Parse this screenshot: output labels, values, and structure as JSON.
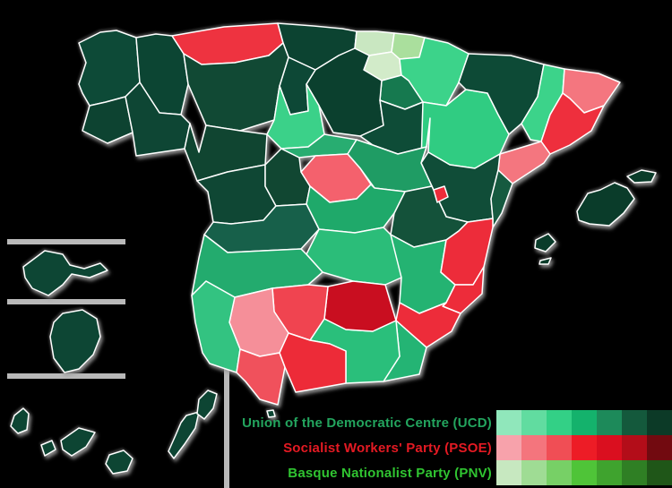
{
  "map": {
    "background": "#000000",
    "border_color": "#ffffff",
    "inset_rule_color": "#b9b9b9",
    "provinces": [
      {
        "id": "coruna",
        "name": "A Coruña",
        "party": "UCD",
        "fill": "#0d4a37"
      },
      {
        "id": "lugo",
        "name": "Lugo",
        "party": "UCD",
        "fill": "#0c4533"
      },
      {
        "id": "pontevedra",
        "name": "Pontevedra",
        "party": "UCD",
        "fill": "#0d4331"
      },
      {
        "id": "ourense",
        "name": "Ourense",
        "party": "UCD",
        "fill": "#0e4634"
      },
      {
        "id": "asturias",
        "name": "Asturias",
        "party": "PSOE",
        "fill": "#ee3340"
      },
      {
        "id": "cantabria",
        "name": "Cantabria",
        "party": "UCD",
        "fill": "#0c4331"
      },
      {
        "id": "vizcaya",
        "name": "Biscay",
        "party": "PNV",
        "fill": "#c9e7c1"
      },
      {
        "id": "guipuzcoa",
        "name": "Gipuzkoa",
        "party": "PNV",
        "fill": "#aadf9d"
      },
      {
        "id": "alava",
        "name": "Álava",
        "party": "PNV",
        "fill": "#d2ebc9"
      },
      {
        "id": "navarra",
        "name": "Navarre",
        "party": "UCD",
        "fill": "#3cd38a"
      },
      {
        "id": "rioja",
        "name": "La Rioja",
        "party": "UCD",
        "fill": "#16794f"
      },
      {
        "id": "burgos",
        "name": "Burgos",
        "party": "UCD",
        "fill": "#0b402e"
      },
      {
        "id": "palencia",
        "name": "Palencia",
        "party": "UCD",
        "fill": "#0d4836"
      },
      {
        "id": "leon",
        "name": "León",
        "party": "UCD",
        "fill": "#114934"
      },
      {
        "id": "zamora",
        "name": "Zamora",
        "party": "UCD",
        "fill": "#104531"
      },
      {
        "id": "valladolid",
        "name": "Valladolid",
        "party": "UCD",
        "fill": "#3bd189"
      },
      {
        "id": "salamanca",
        "name": "Salamanca",
        "party": "UCD",
        "fill": "#0f4734"
      },
      {
        "id": "avila",
        "name": "Ávila",
        "party": "UCD",
        "fill": "#114732"
      },
      {
        "id": "segovia",
        "name": "Segovia",
        "party": "UCD",
        "fill": "#28ad71"
      },
      {
        "id": "soria",
        "name": "Soria",
        "party": "UCD",
        "fill": "#0e4c37"
      },
      {
        "id": "zaragoza",
        "name": "Zaragoza",
        "party": "UCD",
        "fill": "#30cc82"
      },
      {
        "id": "huesca",
        "name": "Huesca",
        "party": "UCD",
        "fill": "#0d4a36"
      },
      {
        "id": "lleida",
        "name": "Lleida",
        "party": "UCD",
        "fill": "#3cd38a"
      },
      {
        "id": "girona",
        "name": "Girona",
        "party": "PSOE",
        "fill": "#f4767f"
      },
      {
        "id": "barcelona",
        "name": "Barcelona",
        "party": "PSOE",
        "fill": "#ee2f3d"
      },
      {
        "id": "tarragona",
        "name": "Tarragona",
        "party": "PSOE",
        "fill": "#f4767f"
      },
      {
        "id": "teruel",
        "name": "Teruel",
        "party": "UCD",
        "fill": "#104d38"
      },
      {
        "id": "castellon",
        "name": "Castellón",
        "party": "UCD",
        "fill": "#165a40"
      },
      {
        "id": "guadalajara",
        "name": "Guadalajara",
        "party": "UCD",
        "fill": "#1f9c64"
      },
      {
        "id": "madrid",
        "name": "Madrid",
        "party": "PSOE",
        "fill": "#f4616d"
      },
      {
        "id": "cuenca",
        "name": "Cuenca",
        "party": "UCD",
        "fill": "#14523a"
      },
      {
        "id": "toledo",
        "name": "Toledo",
        "party": "UCD",
        "fill": "#1fa96a"
      },
      {
        "id": "ciudadreal",
        "name": "Ciudad Real",
        "party": "UCD",
        "fill": "#2bbd79"
      },
      {
        "id": "caceres",
        "name": "Cáceres",
        "party": "UCD",
        "fill": "#17604a"
      },
      {
        "id": "badajoz",
        "name": "Badajoz",
        "party": "UCD",
        "fill": "#23ab6e"
      },
      {
        "id": "albacete",
        "name": "Albacete",
        "party": "UCD",
        "fill": "#24b372"
      },
      {
        "id": "valencia",
        "name": "Valencia",
        "party": "PSOE",
        "fill": "#ed2c3a"
      },
      {
        "id": "ademuz",
        "name": "Valencia (Rincón de Ademuz)",
        "party": "PSOE",
        "fill": "#ed2c3a"
      },
      {
        "id": "alicante",
        "name": "Alicante",
        "party": "PSOE",
        "fill": "#ed2c3a"
      },
      {
        "id": "murcia",
        "name": "Murcia",
        "party": "PSOE",
        "fill": "#ed2c3a"
      },
      {
        "id": "almeria",
        "name": "Almería",
        "party": "UCD",
        "fill": "#24b474"
      },
      {
        "id": "granada",
        "name": "Granada",
        "party": "UCD",
        "fill": "#2abf7b"
      },
      {
        "id": "jaen",
        "name": "Jaén",
        "party": "PSOE",
        "fill": "#c90e20"
      },
      {
        "id": "cordoba",
        "name": "Córdoba",
        "party": "PSOE",
        "fill": "#f04450"
      },
      {
        "id": "sevilla",
        "name": "Sevilla",
        "party": "PSOE",
        "fill": "#f58f99"
      },
      {
        "id": "huelva",
        "name": "Huelva",
        "party": "UCD",
        "fill": "#33c381"
      },
      {
        "id": "cadiz",
        "name": "Cádiz",
        "party": "PSOE",
        "fill": "#f0515c"
      },
      {
        "id": "malaga",
        "name": "Málaga",
        "party": "PSOE",
        "fill": "#ed2b38"
      },
      {
        "id": "mallorca",
        "name": "Mallorca",
        "party": "UCD",
        "fill": "#0a3c2a"
      },
      {
        "id": "menorca",
        "name": "Menorca",
        "party": "UCD",
        "fill": "#0a3c2a"
      },
      {
        "id": "ibiza",
        "name": "Ibiza",
        "party": "UCD",
        "fill": "#0a3c2a"
      },
      {
        "id": "formentera",
        "name": "Formentera",
        "party": "UCD",
        "fill": "#0a3c2a"
      },
      {
        "id": "lapalma",
        "name": "La Palma",
        "party": "UCD",
        "fill": "#0d4533"
      },
      {
        "id": "gomera",
        "name": "La Gomera",
        "party": "UCD",
        "fill": "#0d4533"
      },
      {
        "id": "tenerife",
        "name": "Tenerife",
        "party": "UCD",
        "fill": "#0d4533"
      },
      {
        "id": "grancanaria",
        "name": "Gran Canaria",
        "party": "UCD",
        "fill": "#0d4533"
      },
      {
        "id": "fuerteventura",
        "name": "Fuerteventura",
        "party": "UCD",
        "fill": "#0d4533"
      },
      {
        "id": "lanzarote",
        "name": "Lanzarote",
        "party": "UCD",
        "fill": "#0d4533"
      },
      {
        "id": "ceuta",
        "name": "Ceuta",
        "party": "UCD",
        "fill": "#0d4533"
      },
      {
        "id": "insetA",
        "name": "Inset island (top)",
        "party": "UCD",
        "fill": "#0d4634"
      },
      {
        "id": "insetB",
        "name": "Inset island (bottom)",
        "party": "UCD",
        "fill": "#0d4634"
      }
    ]
  },
  "legend": {
    "entries": [
      {
        "label": "Union of the Democratic Centre (UCD)",
        "text_color": "#23a55e",
        "swatches": [
          "#90e7bb",
          "#61dca0",
          "#33d086",
          "#14b26c",
          "#1d8a5a",
          "#14593c",
          "#0c3a27"
        ]
      },
      {
        "label": "Socialist Workers' Party (PSOE)",
        "text_color": "#e41a23",
        "swatches": [
          "#f7a2ab",
          "#f4757d",
          "#f04e55",
          "#ed1c26",
          "#da0f1f",
          "#b30d19",
          "#720a10"
        ]
      },
      {
        "label": "Basque Nationalist Party (PNV)",
        "text_color": "#30c431",
        "swatches": [
          "#c7e8c0",
          "#9fdc94",
          "#77d066",
          "#4fc438",
          "#3fa32e",
          "#2f7f24",
          "#1f5618"
        ]
      }
    ]
  }
}
